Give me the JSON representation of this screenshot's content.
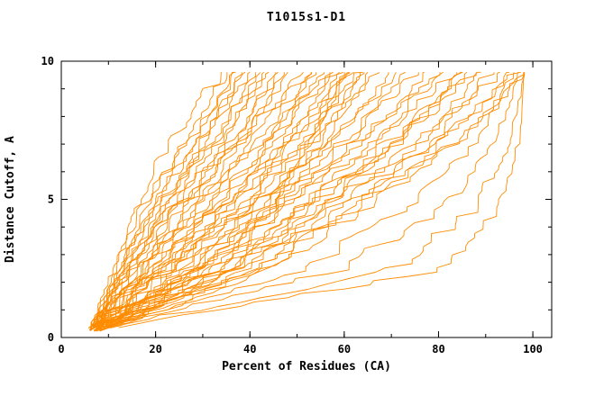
{
  "chart_data": {
    "type": "line",
    "title": "T1015s1-D1",
    "xlabel": "Percent of Residues (CA)",
    "ylabel": "Distance Cutoff, A",
    "xlim": [
      0,
      104
    ],
    "ylim": [
      0,
      10
    ],
    "x_ticks": [
      0,
      20,
      40,
      60,
      80,
      100
    ],
    "y_ticks": [
      0,
      5,
      10
    ],
    "x_minor_step": 10,
    "y_minor_step": 1,
    "grid": false,
    "legend": false,
    "line_color": "#ff8c00",
    "axis_color": "#000000",
    "background": "#ffffff",
    "y_control_cutoffs": [
      0.3,
      2.4,
      4.8,
      7.2,
      9.6
    ],
    "series": [
      [
        6,
        11,
        16,
        23,
        34
      ],
      [
        6,
        12,
        18,
        26,
        35
      ],
      [
        7,
        13,
        20,
        28,
        36
      ],
      [
        6,
        11,
        17,
        27,
        37
      ],
      [
        7,
        14,
        22,
        30,
        38
      ],
      [
        6,
        12,
        19,
        29,
        39
      ],
      [
        6,
        13,
        21,
        31,
        40
      ],
      [
        7,
        15,
        24,
        33,
        41
      ],
      [
        6,
        12,
        20,
        32,
        42
      ],
      [
        7,
        16,
        26,
        35,
        43
      ],
      [
        6,
        13,
        22,
        34,
        44
      ],
      [
        7,
        17,
        27,
        37,
        45
      ],
      [
        6,
        14,
        23,
        36,
        46
      ],
      [
        7,
        18,
        29,
        39,
        47
      ],
      [
        6,
        15,
        25,
        38,
        48
      ],
      [
        7,
        19,
        31,
        41,
        50
      ],
      [
        6,
        14,
        24,
        38,
        52
      ],
      [
        7,
        20,
        33,
        44,
        53
      ],
      [
        6,
        16,
        27,
        41,
        54
      ],
      [
        7,
        21,
        35,
        46,
        55
      ],
      [
        6,
        17,
        29,
        43,
        56
      ],
      [
        7,
        22,
        36,
        48,
        57
      ],
      [
        6,
        18,
        30,
        45,
        58
      ],
      [
        7,
        23,
        38,
        50,
        59
      ],
      [
        6,
        19,
        32,
        47,
        60
      ],
      [
        7,
        24,
        39,
        52,
        61
      ],
      [
        6,
        20,
        33,
        49,
        62
      ],
      [
        7,
        25,
        41,
        54,
        63
      ],
      [
        6,
        21,
        35,
        51,
        64
      ],
      [
        7,
        26,
        42,
        56,
        65
      ],
      [
        8,
        28,
        44,
        55,
        63
      ],
      [
        8,
        30,
        45,
        53,
        60
      ],
      [
        7,
        22,
        38,
        54,
        67
      ],
      [
        8,
        27,
        44,
        58,
        69
      ],
      [
        7,
        24,
        40,
        57,
        71
      ],
      [
        8,
        29,
        46,
        61,
        73
      ],
      [
        7,
        26,
        43,
        60,
        75
      ],
      [
        8,
        31,
        48,
        64,
        77
      ],
      [
        7,
        28,
        45,
        63,
        79
      ],
      [
        8,
        33,
        50,
        67,
        81
      ],
      [
        7,
        30,
        47,
        66,
        83
      ],
      [
        8,
        35,
        52,
        70,
        85
      ],
      [
        9,
        38,
        55,
        72,
        84
      ],
      [
        9,
        36,
        53,
        71,
        86
      ],
      [
        8,
        32,
        52,
        72,
        87
      ],
      [
        8,
        36,
        56,
        76,
        89
      ],
      [
        9,
        40,
        60,
        79,
        91
      ],
      [
        8,
        34,
        55,
        77,
        93
      ],
      [
        9,
        42,
        62,
        82,
        95
      ],
      [
        8,
        38,
        58,
        80,
        96
      ],
      [
        9,
        44,
        65,
        85,
        97
      ],
      [
        8,
        40,
        63,
        84,
        98
      ],
      [
        7,
        50,
        75,
        88,
        96
      ],
      [
        8,
        58,
        82,
        92,
        97
      ],
      [
        7,
        70,
        88,
        95,
        98
      ],
      [
        9,
        80,
        93,
        97,
        98
      ]
    ]
  }
}
